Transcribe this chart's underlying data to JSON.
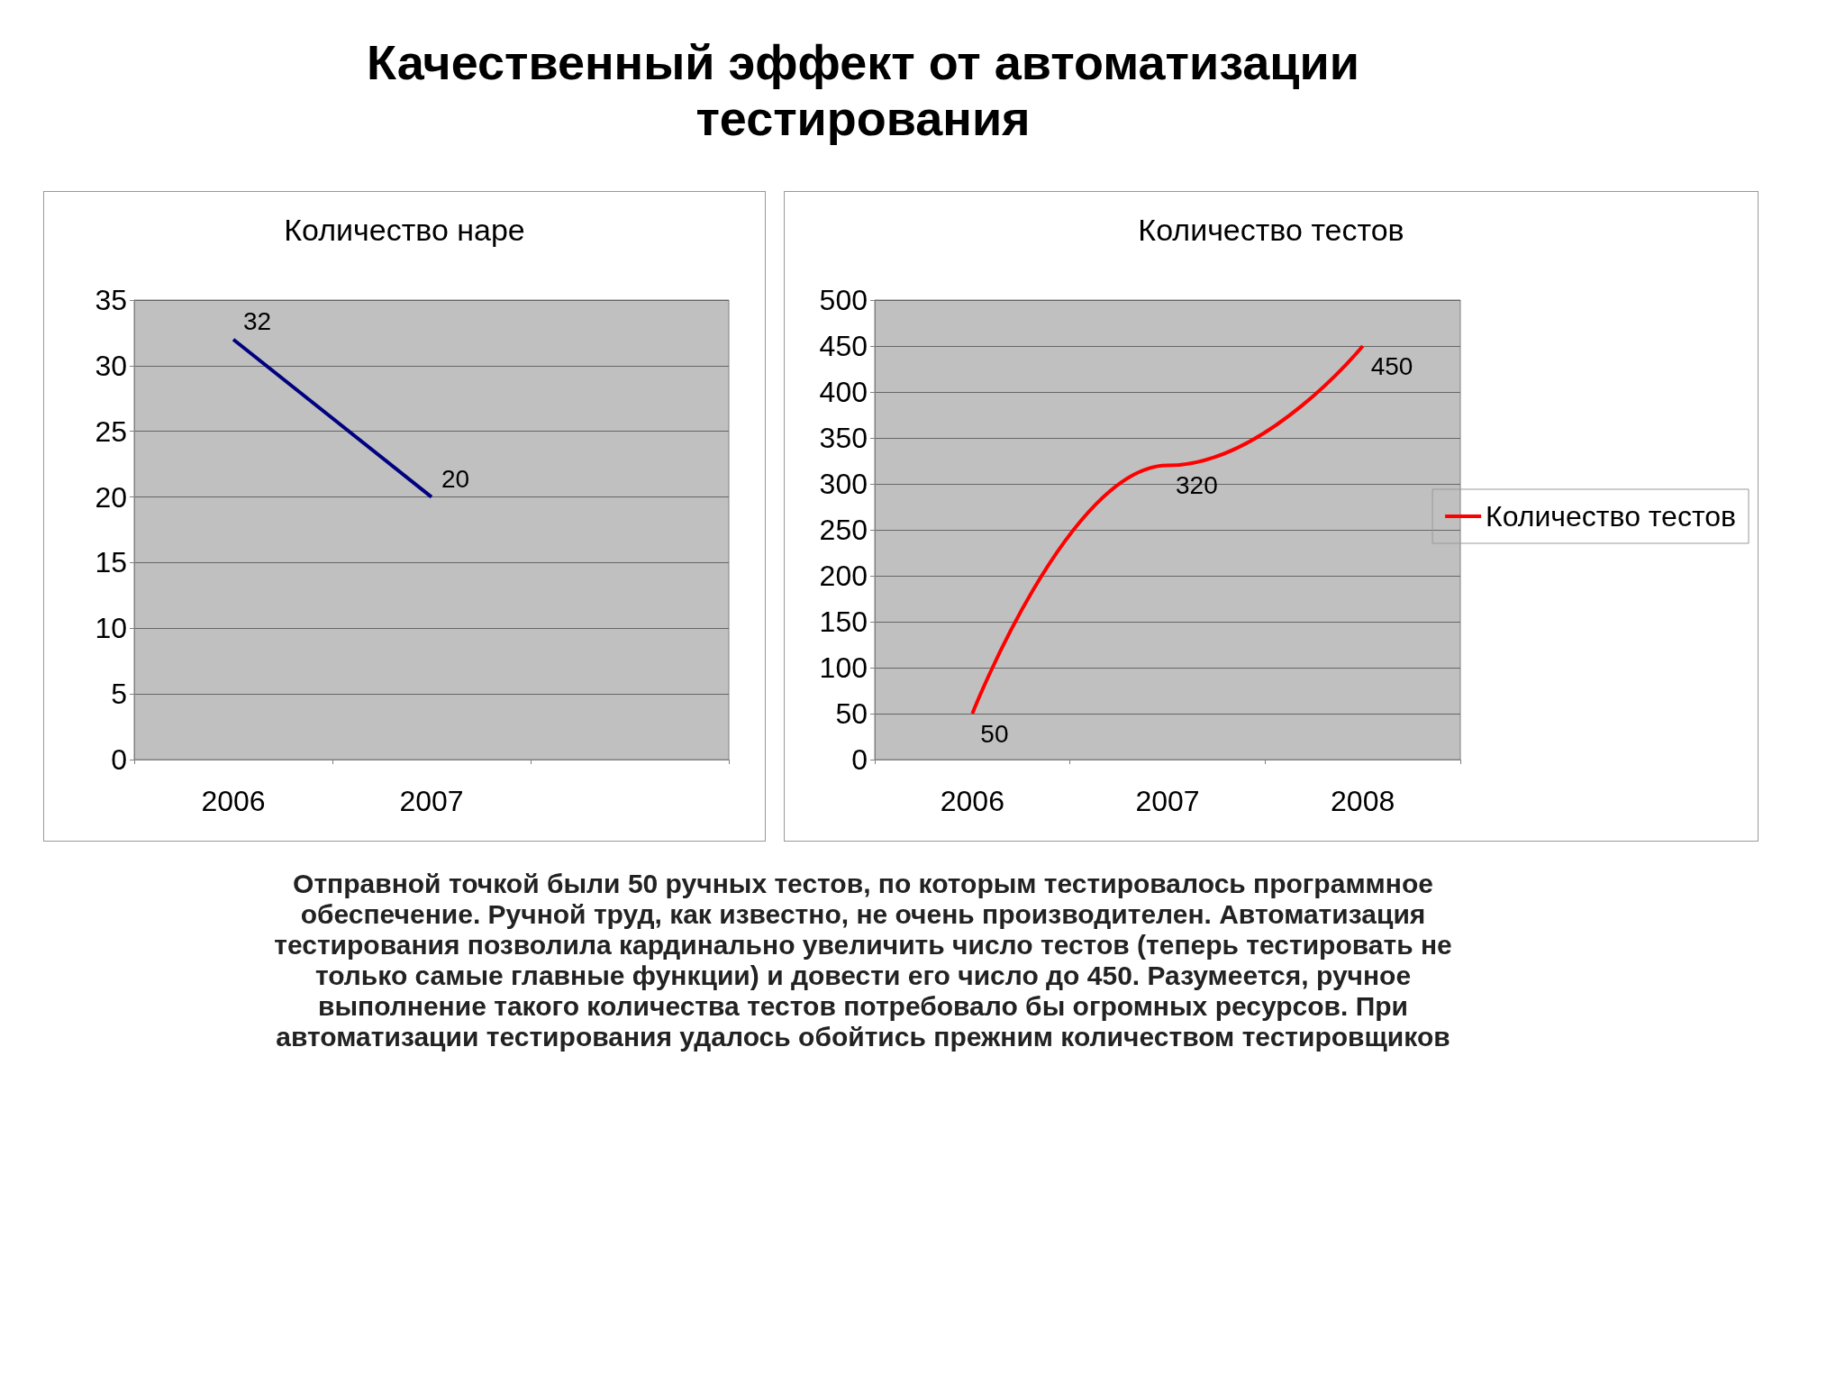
{
  "chart_data": [
    {
      "type": "other",
      "title": "Качественный эффект от автоматизации тестирования"
    },
    {
      "type": "line",
      "title": "Количество наре",
      "categories": [
        "2006",
        "2007",
        null
      ],
      "series": [
        {
          "color": "#000080",
          "values": [
            32,
            20,
            null
          ]
        }
      ],
      "ylim": [
        0,
        35
      ],
      "yticks": [
        0,
        5,
        10,
        15,
        20,
        25,
        30,
        35
      ],
      "grid": "y",
      "data_labels": true,
      "legend": false
    },
    {
      "type": "line",
      "title": "Количество тестов",
      "categories": [
        "2006",
        "2007",
        "2008"
      ],
      "series": [
        {
          "name": "Количество тестов",
          "color": "#ff0000",
          "values": [
            50,
            320,
            450
          ]
        }
      ],
      "ylim": [
        0,
        500
      ],
      "yticks": [
        0,
        50,
        100,
        150,
        200,
        250,
        300,
        350,
        400,
        450,
        500
      ],
      "grid": "y",
      "data_labels": true,
      "legend": "right"
    },
    {
      "type": "other",
      "annotations": [
        "Отправной точкой были 50 ручных тестов, по которым тестировалось программное обеспечение. Ручной труд, как известно, не очень производителен. Автоматизация тестирования позволила кардинально увеличить число тестов (теперь тестировать не только самые главные функции) и довести его число до 450. Разумеется, ручное выполнение такого количества тестов потребовало бы огромных ресурсов. При автоматизации тестирования удалось обойтись прежним количеством тестировщиков"
      ]
    }
  ]
}
